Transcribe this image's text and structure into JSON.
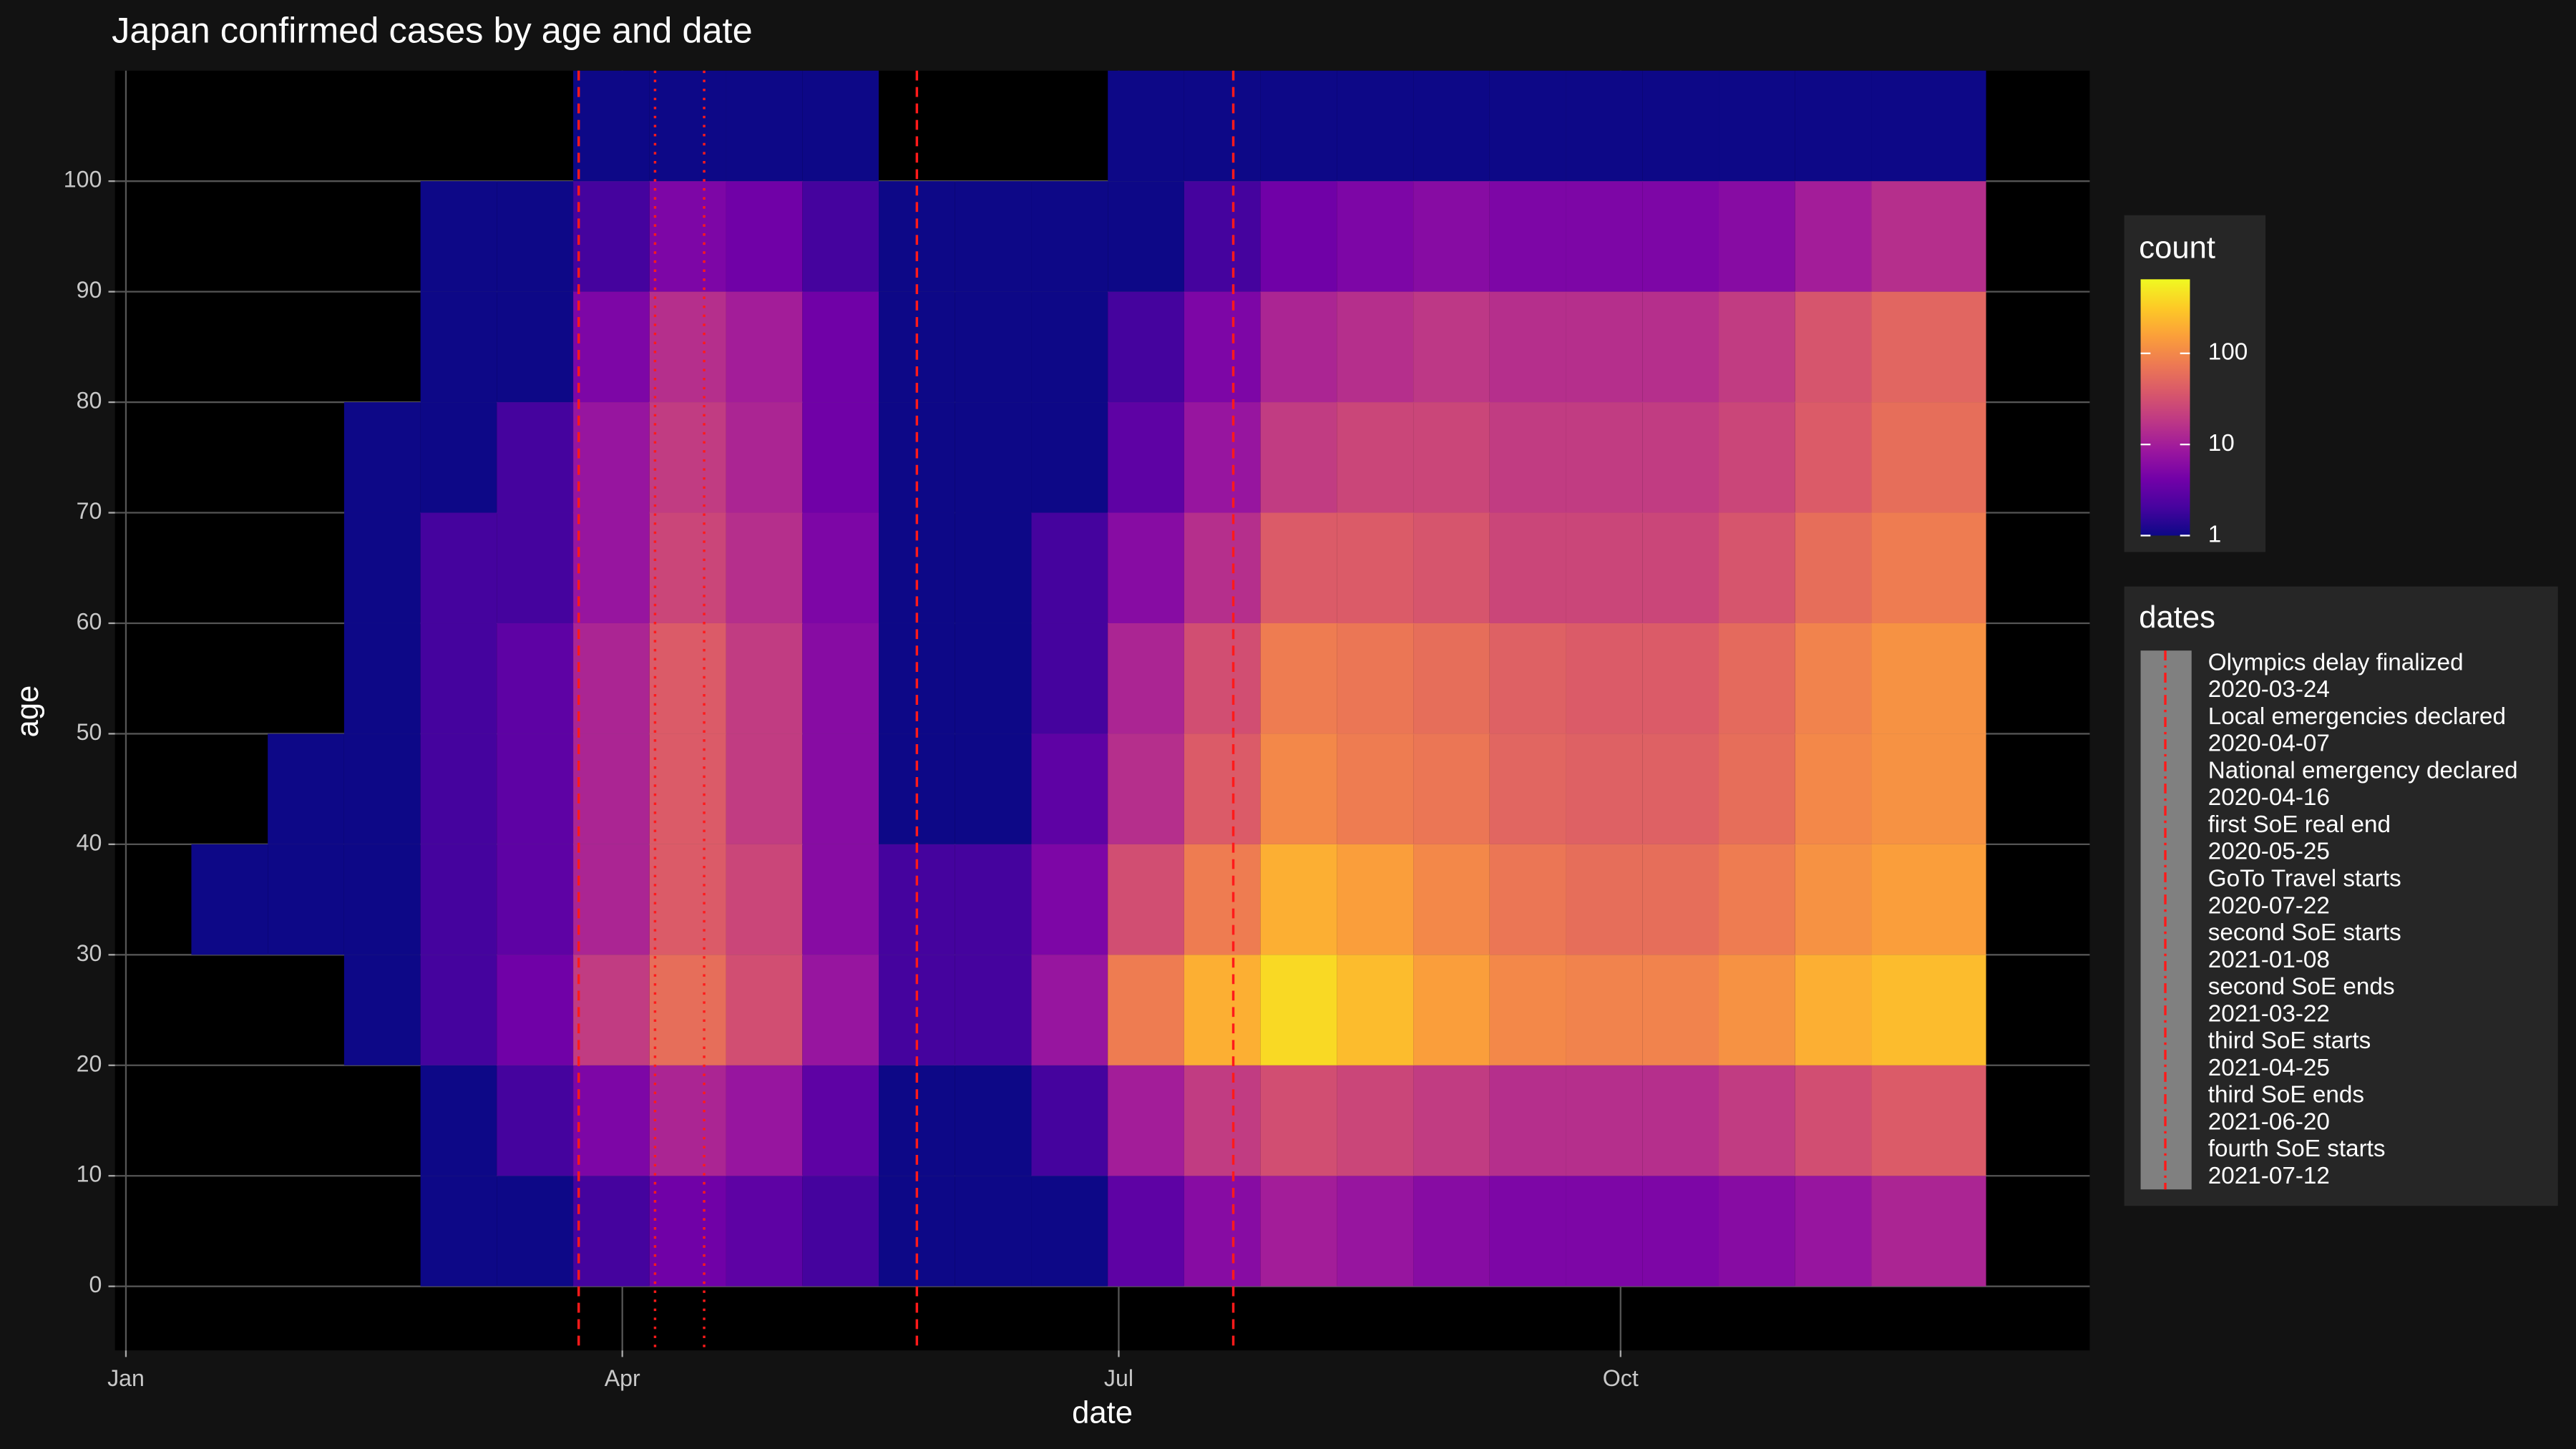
{
  "chart_data": {
    "type": "heatmap",
    "title": "Japan confirmed cases by age and date",
    "x_label": "date",
    "y_label": "age",
    "xlim": [
      "2019-12-30",
      "2020-12-26"
    ],
    "xticks": [
      {
        "value": "2020-01-01",
        "label": "Jan"
      },
      {
        "value": "2020-04-01",
        "label": "Apr"
      },
      {
        "value": "2020-07-01",
        "label": "Jul"
      },
      {
        "value": "2020-10-01",
        "label": "Oct"
      }
    ],
    "ylim": [
      -5.8,
      110
    ],
    "yticks": [
      0,
      10,
      20,
      30,
      40,
      50,
      60,
      70,
      80,
      90,
      100
    ],
    "grid": true,
    "bins": [
      "2020-01-13",
      "2020-01-27",
      "2020-02-10",
      "2020-02-24",
      "2020-03-09",
      "2020-03-23",
      "2020-04-06",
      "2020-04-20",
      "2020-05-04",
      "2020-05-18",
      "2020-06-01",
      "2020-06-15",
      "2020-06-29",
      "2020-07-13",
      "2020-07-27",
      "2020-08-10",
      "2020-08-24",
      "2020-09-07",
      "2020-09-21",
      "2020-10-05",
      "2020-10-19",
      "2020-11-02",
      "2020-11-16",
      "2020-12-07"
    ],
    "ybins": [
      0,
      10,
      20,
      30,
      40,
      50,
      60,
      70,
      80,
      90,
      100,
      110
    ],
    "z": [
      [
        null,
        null,
        null,
        1,
        1,
        2,
        4,
        3,
        2,
        1,
        1,
        1,
        3,
        6,
        10,
        8,
        6,
        5,
        5,
        5,
        6,
        8,
        12
      ],
      [
        null,
        null,
        null,
        1,
        2,
        5,
        12,
        8,
        3,
        1,
        1,
        2,
        10,
        20,
        30,
        25,
        20,
        15,
        15,
        15,
        20,
        30,
        40
      ],
      [
        null,
        null,
        1,
        2,
        4,
        20,
        60,
        30,
        8,
        2,
        2,
        8,
        80,
        200,
        400,
        250,
        150,
        100,
        90,
        90,
        120,
        200,
        250
      ],
      [
        1,
        1,
        1,
        2,
        3,
        12,
        40,
        25,
        6,
        2,
        2,
        5,
        30,
        80,
        200,
        150,
        100,
        70,
        60,
        60,
        80,
        120,
        150
      ],
      [
        null,
        1,
        1,
        2,
        3,
        12,
        40,
        20,
        6,
        1,
        1,
        3,
        15,
        40,
        100,
        80,
        70,
        50,
        45,
        45,
        60,
        100,
        120
      ],
      [
        null,
        null,
        1,
        2,
        3,
        12,
        40,
        20,
        6,
        1,
        1,
        2,
        12,
        30,
        80,
        70,
        60,
        45,
        40,
        40,
        55,
        90,
        120
      ],
      [
        null,
        null,
        1,
        2,
        2,
        8,
        25,
        15,
        5,
        1,
        1,
        2,
        6,
        15,
        40,
        40,
        35,
        25,
        25,
        25,
        35,
        60,
        80
      ],
      [
        null,
        null,
        1,
        1,
        2,
        8,
        20,
        12,
        4,
        1,
        1,
        1,
        3,
        8,
        20,
        25,
        25,
        20,
        20,
        20,
        25,
        40,
        60
      ],
      [
        null,
        null,
        null,
        1,
        1,
        5,
        15,
        10,
        4,
        1,
        1,
        1,
        2,
        5,
        12,
        15,
        18,
        15,
        15,
        15,
        20,
        35,
        50
      ],
      [
        null,
        null,
        null,
        1,
        1,
        2,
        5,
        4,
        2,
        1,
        1,
        1,
        1,
        2,
        4,
        5,
        6,
        5,
        5,
        5,
        6,
        10,
        15
      ],
      [
        null,
        null,
        null,
        null,
        null,
        1,
        1,
        1,
        1,
        null,
        null,
        null,
        1,
        1,
        1,
        1,
        1,
        1,
        1,
        1,
        1,
        1,
        1
      ]
    ],
    "colorscale": {
      "title": "count",
      "log": true,
      "lim": [
        1,
        650
      ],
      "ticks": [
        1,
        10,
        100
      ],
      "colors": [
        "#0d0887",
        "#47039f",
        "#7301a8",
        "#9c179e",
        "#bd3786",
        "#d8576b",
        "#ed7953",
        "#fb9f3a",
        "#fdca26",
        "#f0f921"
      ]
    },
    "events": {
      "title": "dates",
      "color": "#ff1a1a",
      "items": [
        {
          "name": "Olympics delay finalized",
          "date": "2020-03-24",
          "linetype": "dashed"
        },
        {
          "name": "Local emergencies declared",
          "date": "2020-04-07",
          "linetype": "dotted"
        },
        {
          "name": "National emergency declared",
          "date": "2020-04-16",
          "linetype": "dotted"
        },
        {
          "name": "first SoE real end",
          "date": "2020-05-25",
          "linetype": "dashed"
        },
        {
          "name": "GoTo Travel starts",
          "date": "2020-07-22",
          "linetype": "dashed"
        },
        {
          "name": "second SoE starts",
          "date": "2021-01-08",
          "linetype": "dashed"
        },
        {
          "name": "second SoE ends",
          "date": "2021-03-22",
          "linetype": "dashed"
        },
        {
          "name": "third SoE starts",
          "date": "2021-04-25",
          "linetype": "dashed"
        },
        {
          "name": "third SoE ends",
          "date": "2021-06-20",
          "linetype": "dashed"
        },
        {
          "name": "fourth SoE starts",
          "date": "2021-07-12",
          "linetype": "dashed"
        }
      ]
    }
  }
}
